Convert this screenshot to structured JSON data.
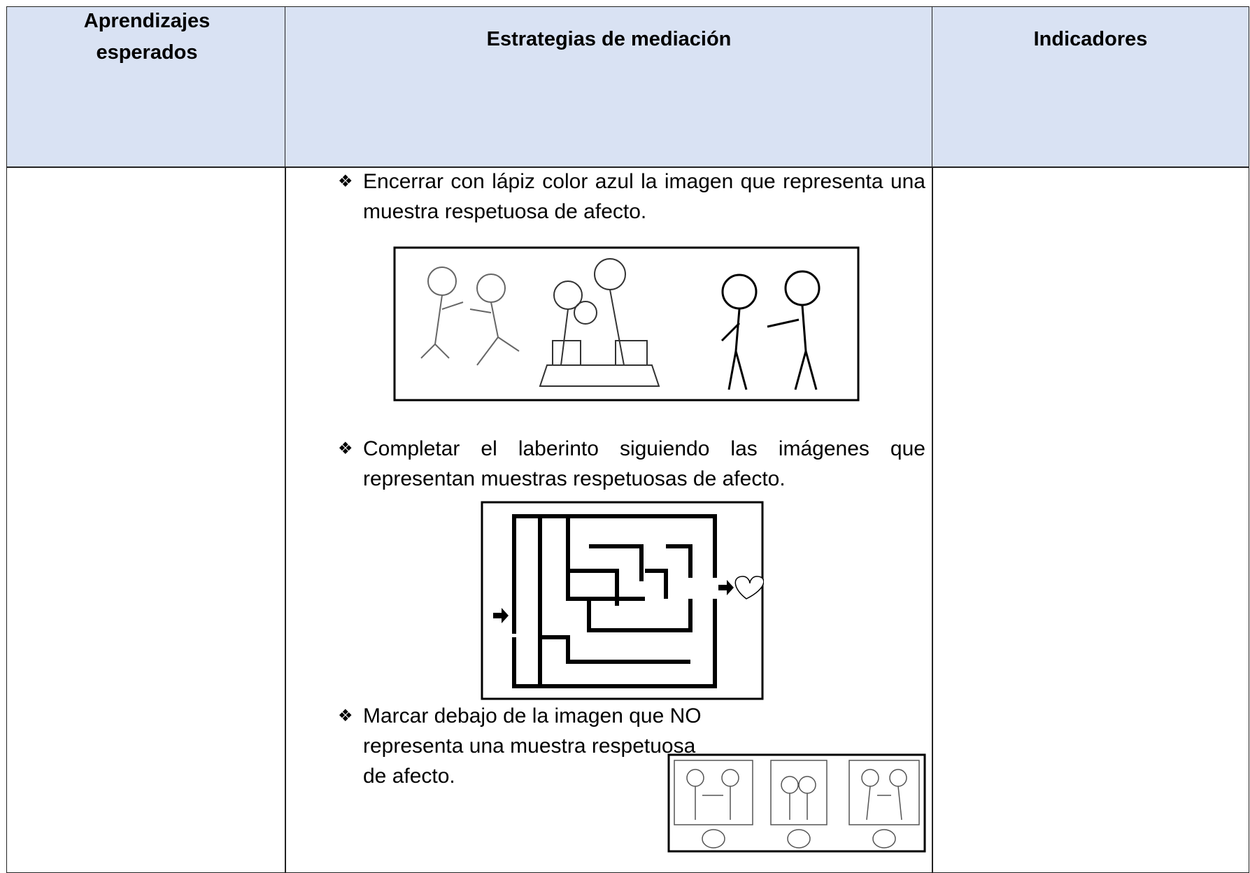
{
  "table": {
    "headers": [
      "Aprendizajes esperados",
      "Estrategias de mediación",
      "Indicadores"
    ],
    "rows": [
      {
        "strategies": [
          "Encerrar con lápiz color azul la imagen que representa una muestra respetuosa de afecto.",
          "Completar el laberinto siguiendo las imágenes que representan muestras respetuosas de afecto.",
          "Marcar debajo de la imagen que NO representa una muestra respetuosa de afecto."
        ]
      }
    ]
  }
}
